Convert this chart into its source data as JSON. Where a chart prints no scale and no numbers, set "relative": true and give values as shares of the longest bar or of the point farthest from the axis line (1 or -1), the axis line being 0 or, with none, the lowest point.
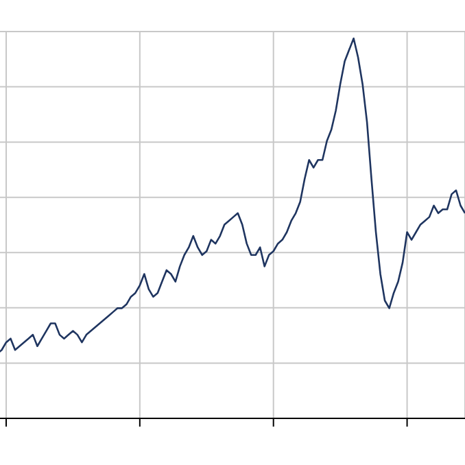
{
  "chart_data": {
    "type": "line",
    "relative": true,
    "grid": true,
    "legend": false,
    "marker": "none",
    "line_style": "solid",
    "categories": [
      null,
      null,
      null,
      null,
      null,
      null,
      null,
      null,
      null,
      null,
      null,
      null,
      null,
      null,
      null,
      null,
      null,
      null,
      null,
      null,
      null,
      null,
      null,
      null,
      null,
      null,
      null,
      null,
      null,
      null,
      null,
      null,
      null,
      null,
      null,
      null,
      null,
      null,
      null,
      null,
      null,
      null,
      null,
      null,
      null,
      null,
      null,
      null,
      null,
      null,
      null,
      null,
      null,
      null,
      null,
      null,
      null,
      null,
      null,
      null,
      null,
      null,
      null,
      null,
      null,
      null,
      null,
      null,
      null,
      null,
      null,
      null,
      null,
      null,
      null,
      null,
      null,
      null,
      null,
      null,
      null,
      null,
      null,
      null,
      null,
      null,
      null,
      null,
      null,
      null,
      null,
      null,
      null,
      null,
      null,
      null,
      null,
      null,
      null,
      null,
      null,
      null,
      null,
      null,
      null,
      null
    ],
    "series": [
      {
        "color": "#1f3560",
        "values": [
          0.17,
          0.18,
          0.2,
          0.21,
          0.18,
          0.19,
          0.2,
          0.21,
          0.22,
          0.19,
          0.21,
          0.23,
          0.25,
          0.25,
          0.22,
          0.21,
          0.22,
          0.23,
          0.22,
          0.2,
          0.22,
          0.23,
          0.24,
          0.25,
          0.26,
          0.27,
          0.28,
          0.29,
          0.29,
          0.3,
          0.32,
          0.33,
          0.35,
          0.38,
          0.34,
          0.32,
          0.33,
          0.36,
          0.39,
          0.38,
          0.36,
          0.4,
          0.43,
          0.45,
          0.48,
          0.45,
          0.43,
          0.44,
          0.47,
          0.46,
          0.48,
          0.51,
          0.52,
          0.53,
          0.54,
          0.51,
          0.46,
          0.43,
          0.43,
          0.45,
          0.4,
          0.43,
          0.44,
          0.46,
          0.47,
          0.49,
          0.52,
          0.54,
          0.57,
          0.63,
          0.68,
          0.66,
          0.68,
          0.68,
          0.73,
          0.76,
          0.81,
          0.88,
          0.94,
          0.97,
          1,
          0.95,
          0.88,
          0.78,
          0.63,
          0.49,
          0.38,
          0.31,
          0.29,
          0.33,
          0.36,
          0.41,
          0.49,
          0.47,
          0.49,
          0.51,
          0.52,
          0.53,
          0.56,
          0.54,
          0.55,
          0.55,
          0.59,
          0.6,
          0.56,
          0.54
        ]
      }
    ]
  }
}
